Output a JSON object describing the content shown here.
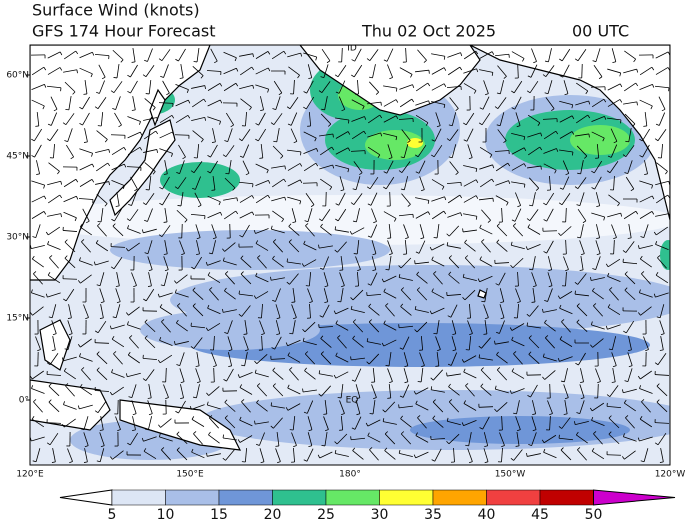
{
  "header": {
    "title": "Surface Wind (knots)",
    "forecast": "GFS 174 Hour Forecast",
    "date": "Thu 02 Oct 2025",
    "time": "00 UTC"
  },
  "map": {
    "lat_labels": [
      "60°N",
      "45°N",
      "30°N",
      "15°N",
      "0°"
    ],
    "lon_labels": [
      "120°E",
      "150°E",
      "180°",
      "150°W",
      "120°W"
    ],
    "annotations": [
      "ID",
      "EQ"
    ]
  },
  "colorbar": {
    "ticks": [
      5,
      10,
      15,
      20,
      25,
      30,
      35,
      40,
      45,
      50
    ],
    "colors": [
      "#ffffff",
      "#dde6f5",
      "#a9bfe8",
      "#6f96d8",
      "#2fc08f",
      "#66e866",
      "#ffff33",
      "#ffa500",
      "#f04040",
      "#c00000",
      "#cc00cc"
    ]
  }
}
